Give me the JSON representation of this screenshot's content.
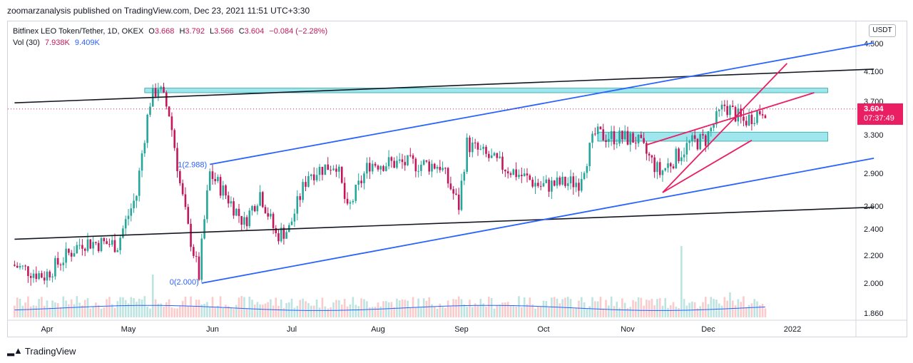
{
  "publisher_line": "zoomarzanalysis published on TradingView.com, Dec 23, 2021 11:51 UTC+3:30",
  "legend": {
    "symbol": "Bitfinex LEO Token/Tether, 1D, OKEX",
    "open_label": "O",
    "open": "3.668",
    "high_label": "H",
    "high": "3.792",
    "low_label": "L",
    "low": "3.566",
    "close_label": "C",
    "close": "3.604",
    "change": "−0.084 (−2.28%)",
    "volume_label": "Vol (30)",
    "volume": "7.938K",
    "volume_ma": "9.409K"
  },
  "currency": "USDT",
  "last_price": {
    "value": "3.604",
    "countdown": "07:37:49"
  },
  "footer": {
    "brand": "TradingView"
  },
  "colors": {
    "up": "#26a69a",
    "down": "#c2185b",
    "blue_line": "#2962ff",
    "pink_line": "#e91e63",
    "zone": "#80deea"
  },
  "chart_data": {
    "type": "candlestick",
    "y_ticks": [
      "4.500",
      "4.100",
      "3.700",
      "3.300",
      "2.900",
      "2.600",
      "2.400",
      "2.200",
      "2.000",
      "1.860"
    ],
    "x_ticks": [
      "Apr",
      "May",
      "Jun",
      "Jul",
      "Aug",
      "Sep",
      "Oct",
      "Nov",
      "Dec",
      "2022"
    ],
    "annotations": [
      {
        "text": "1(2.988)",
        "date": "2021-05-31",
        "value": 2.988
      },
      {
        "text": "0(2.000)",
        "date": "2021-05-28",
        "value": 2.0
      }
    ],
    "keypoints": [
      [
        "2021-03-20",
        2.13
      ],
      [
        "2021-04-01",
        2.05
      ],
      [
        "2021-04-15",
        2.3
      ],
      [
        "2021-04-28",
        2.28
      ],
      [
        "2021-05-05",
        2.7
      ],
      [
        "2021-05-10",
        3.7
      ],
      [
        "2021-05-13",
        3.9
      ],
      [
        "2021-05-17",
        3.55
      ],
      [
        "2021-05-21",
        2.8
      ],
      [
        "2021-05-24",
        2.4
      ],
      [
        "2021-05-28",
        2.05
      ],
      [
        "2021-06-01",
        2.9
      ],
      [
        "2021-06-07",
        2.7
      ],
      [
        "2021-06-14",
        2.45
      ],
      [
        "2021-06-20",
        2.72
      ],
      [
        "2021-06-26",
        2.35
      ],
      [
        "2021-07-01",
        2.4
      ],
      [
        "2021-07-08",
        2.9
      ],
      [
        "2021-07-18",
        3.0
      ],
      [
        "2021-07-22",
        2.55
      ],
      [
        "2021-07-30",
        3.0
      ],
      [
        "2021-08-10",
        3.0
      ],
      [
        "2021-08-25",
        2.98
      ],
      [
        "2021-09-01",
        2.6
      ],
      [
        "2021-09-04",
        3.2
      ],
      [
        "2021-09-15",
        3.0
      ],
      [
        "2021-10-01",
        2.78
      ],
      [
        "2021-10-15",
        2.82
      ],
      [
        "2021-10-21",
        3.3
      ],
      [
        "2021-11-05",
        3.25
      ],
      [
        "2021-11-14",
        2.9
      ],
      [
        "2021-11-25",
        3.2
      ],
      [
        "2021-12-01",
        3.25
      ],
      [
        "2021-12-08",
        3.65
      ],
      [
        "2021-12-15",
        3.45
      ],
      [
        "2021-12-22",
        3.6
      ]
    ],
    "volume_spikes": [
      [
        "2021-05-10",
        0.6
      ],
      [
        "2021-11-21",
        1.0
      ],
      [
        "2021-12-09",
        0.35
      ]
    ],
    "trend_lines": [
      {
        "color": "black",
        "from": [
          "2021-03-20",
          3.68
        ],
        "to": [
          "2022-01-31",
          4.13
        ]
      },
      {
        "color": "black",
        "from": [
          "2021-03-20",
          2.32
        ],
        "to": [
          "2022-01-31",
          2.59
        ]
      },
      {
        "color": "blue",
        "from": [
          "2021-05-31",
          2.988
        ],
        "to": [
          "2022-01-31",
          4.51
        ]
      },
      {
        "color": "blue",
        "from": [
          "2021-05-28",
          2.0
        ],
        "to": [
          "2022-01-31",
          3.05
        ]
      },
      {
        "color": "pink",
        "from": [
          "2021-11-14",
          2.72
        ],
        "to": [
          "2021-12-30",
          4.21
        ]
      },
      {
        "color": "pink",
        "from": [
          "2021-11-08",
          3.19
        ],
        "to": [
          "2022-01-09",
          3.81
        ]
      },
      {
        "color": "pink",
        "from": [
          "2021-11-14",
          2.72
        ],
        "to": [
          "2021-12-17",
          3.24
        ]
      }
    ],
    "zones": [
      {
        "from": "2021-05-07",
        "to": "2022-01-14",
        "top": 3.87,
        "bottom": 3.81
      },
      {
        "from": "2021-10-21",
        "to": "2022-01-14",
        "top": 3.33,
        "bottom": 3.23
      }
    ]
  }
}
